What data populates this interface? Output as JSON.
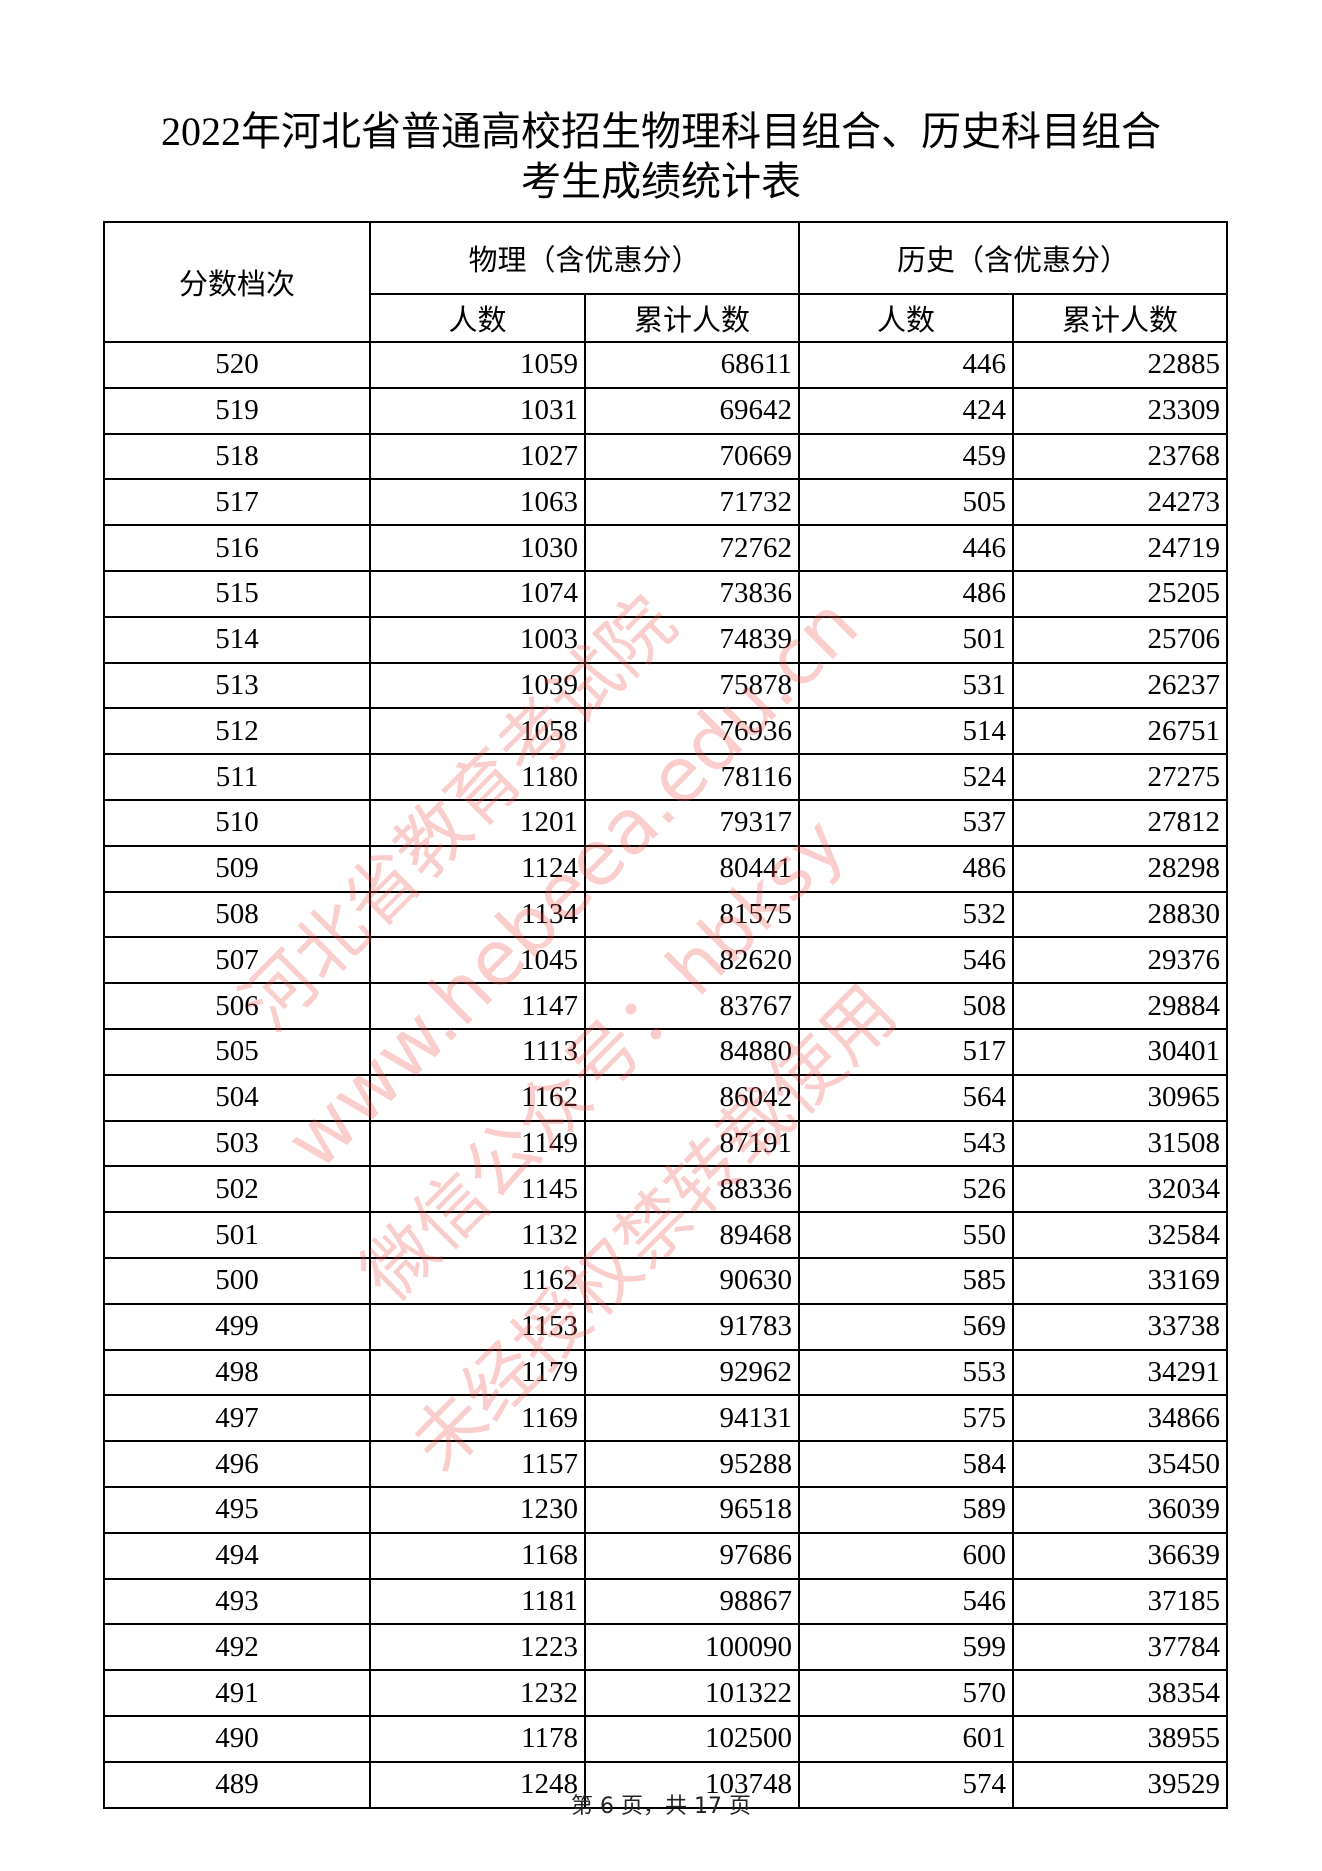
{
  "title": {
    "line1": "2022年河北省普通高校招生物理科目组合、历史科目组合",
    "line2": "考生成绩统计表"
  },
  "table": {
    "header": {
      "score": "分数档次",
      "physics": "物理（含优惠分）",
      "history": "历史（含优惠分）",
      "count": "人数",
      "cumulative": "累计人数"
    },
    "rows": [
      [
        "520",
        "1059",
        "68611",
        "446",
        "22885"
      ],
      [
        "519",
        "1031",
        "69642",
        "424",
        "23309"
      ],
      [
        "518",
        "1027",
        "70669",
        "459",
        "23768"
      ],
      [
        "517",
        "1063",
        "71732",
        "505",
        "24273"
      ],
      [
        "516",
        "1030",
        "72762",
        "446",
        "24719"
      ],
      [
        "515",
        "1074",
        "73836",
        "486",
        "25205"
      ],
      [
        "514",
        "1003",
        "74839",
        "501",
        "25706"
      ],
      [
        "513",
        "1039",
        "75878",
        "531",
        "26237"
      ],
      [
        "512",
        "1058",
        "76936",
        "514",
        "26751"
      ],
      [
        "511",
        "1180",
        "78116",
        "524",
        "27275"
      ],
      [
        "510",
        "1201",
        "79317",
        "537",
        "27812"
      ],
      [
        "509",
        "1124",
        "80441",
        "486",
        "28298"
      ],
      [
        "508",
        "1134",
        "81575",
        "532",
        "28830"
      ],
      [
        "507",
        "1045",
        "82620",
        "546",
        "29376"
      ],
      [
        "506",
        "1147",
        "83767",
        "508",
        "29884"
      ],
      [
        "505",
        "1113",
        "84880",
        "517",
        "30401"
      ],
      [
        "504",
        "1162",
        "86042",
        "564",
        "30965"
      ],
      [
        "503",
        "1149",
        "87191",
        "543",
        "31508"
      ],
      [
        "502",
        "1145",
        "88336",
        "526",
        "32034"
      ],
      [
        "501",
        "1132",
        "89468",
        "550",
        "32584"
      ],
      [
        "500",
        "1162",
        "90630",
        "585",
        "33169"
      ],
      [
        "499",
        "1153",
        "91783",
        "569",
        "33738"
      ],
      [
        "498",
        "1179",
        "92962",
        "553",
        "34291"
      ],
      [
        "497",
        "1169",
        "94131",
        "575",
        "34866"
      ],
      [
        "496",
        "1157",
        "95288",
        "584",
        "35450"
      ],
      [
        "495",
        "1230",
        "96518",
        "589",
        "36039"
      ],
      [
        "494",
        "1168",
        "97686",
        "600",
        "36639"
      ],
      [
        "493",
        "1181",
        "98867",
        "546",
        "37185"
      ],
      [
        "492",
        "1223",
        "100090",
        "599",
        "37784"
      ],
      [
        "491",
        "1232",
        "101322",
        "570",
        "38354"
      ],
      [
        "490",
        "1178",
        "102500",
        "601",
        "38955"
      ],
      [
        "489",
        "1248",
        "103748",
        "574",
        "39529"
      ]
    ]
  },
  "watermark": {
    "lines": [
      "河北省教育考试院",
      "www.hebeea.edu.cn",
      "微信公众号：hbksy",
      "未经授权禁转载使用"
    ],
    "color": "#f05050"
  },
  "footer": "第 6 页，共 17 页"
}
